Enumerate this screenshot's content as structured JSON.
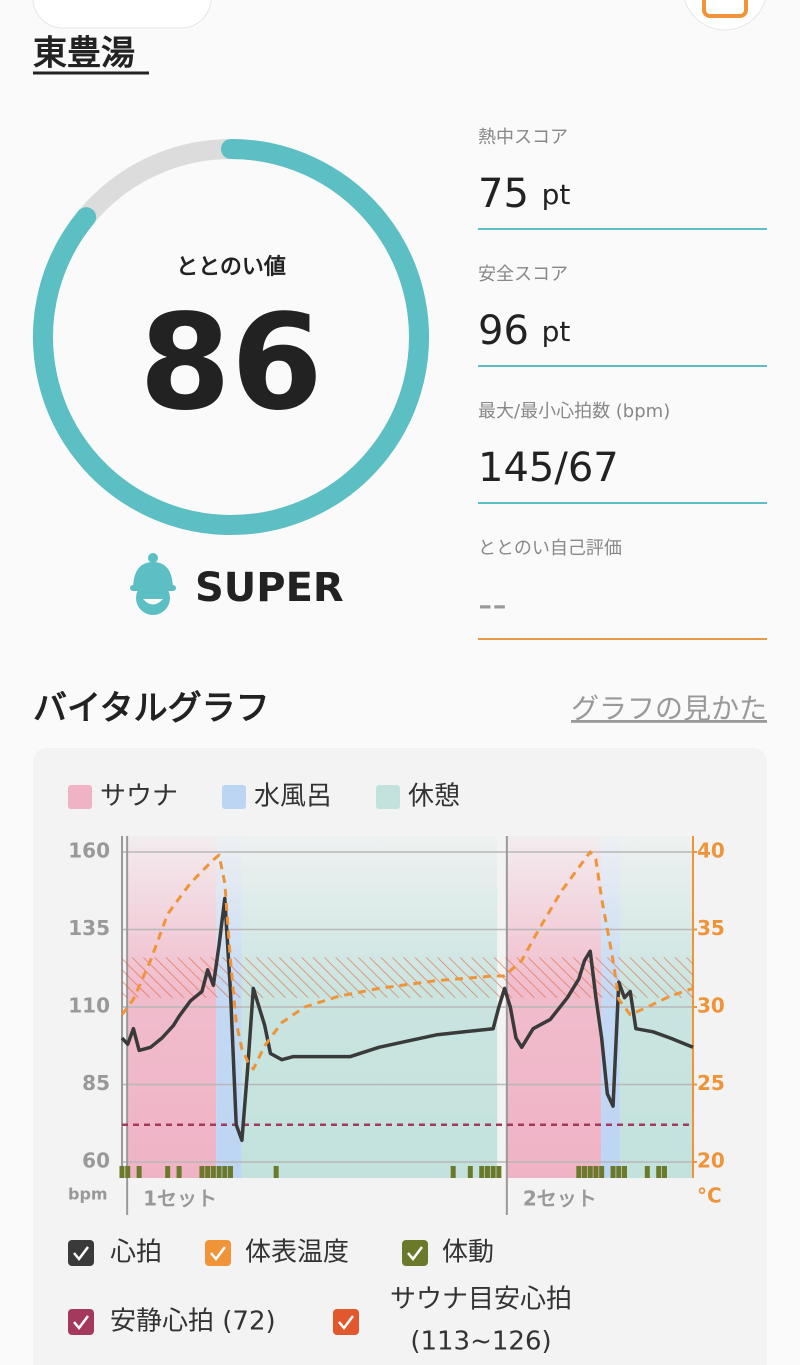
{
  "header": {
    "place": "東豊湯"
  },
  "score": {
    "label": "ととのい値",
    "value": 86,
    "range": [
      0,
      100
    ],
    "rank": "SUPER",
    "color": "#5bbfc4"
  },
  "stats": [
    {
      "label": "熱中スコア",
      "value": 75,
      "unit": "pt"
    },
    {
      "label": "安全スコア",
      "value": 96,
      "unit": "pt"
    },
    {
      "label": "最大/最小心拍数 (bpm)",
      "value": "145/67"
    },
    {
      "label": "ととのい自己評価",
      "value": "--"
    }
  ],
  "vitals": {
    "title": "バイタルグラフ",
    "help_link": "グラフの見かた"
  },
  "chart_data": {
    "type": "line",
    "phase_legend": [
      {
        "name": "サウナ",
        "color": "#f0b3c6"
      },
      {
        "name": "水風呂",
        "color": "#bcd5f3"
      },
      {
        "name": "休憩",
        "color": "#c3e2dd"
      }
    ],
    "phases": [
      {
        "phase": 0,
        "range": [
          1,
          16.5
        ]
      },
      {
        "phase": 1,
        "range": [
          16.5,
          21
        ]
      },
      {
        "phase": 2,
        "range": [
          21,
          65.7
        ]
      },
      {
        "phase": 0,
        "range": [
          67.4,
          83.9
        ]
      },
      {
        "phase": 1,
        "range": [
          83.9,
          87.2
        ]
      },
      {
        "phase": 2,
        "range": [
          87.2,
          100
        ]
      }
    ],
    "sets": [
      {
        "label": "1セット",
        "x": 0.9
      },
      {
        "label": "2セット",
        "x": 67.4
      }
    ],
    "xlim": [
      0,
      100
    ],
    "ylim": [
      60,
      160
    ],
    "yticks": [
      60,
      85,
      110,
      135,
      160
    ],
    "y_unit": "bpm",
    "y2lim": [
      20,
      40
    ],
    "y2ticks": [
      20,
      25,
      30,
      35,
      40
    ],
    "y2_unit": "°C",
    "series": [
      {
        "name": "心拍",
        "color": "#3a3a3a",
        "x": [
          0,
          1,
          2,
          3,
          5,
          7,
          9,
          10,
          12,
          14,
          15,
          16,
          17,
          18,
          19,
          20,
          21,
          22,
          23,
          24,
          25,
          26,
          28,
          30,
          35,
          40,
          45,
          50,
          55,
          60,
          65,
          66,
          67,
          68,
          69,
          70,
          72,
          75,
          78,
          80,
          81,
          82,
          83,
          84,
          85,
          86,
          87,
          88,
          89,
          90,
          93,
          96,
          100
        ],
        "values": [
          100,
          98,
          103,
          96,
          97,
          100,
          104,
          107,
          112,
          115,
          122,
          117,
          130,
          145,
          115,
          72,
          67,
          90,
          116,
          110,
          104,
          95,
          93,
          94,
          94,
          94,
          97,
          99,
          101,
          102,
          103,
          110,
          116,
          110,
          100,
          97,
          103,
          106,
          113,
          119,
          125,
          128,
          113,
          100,
          82,
          78,
          118,
          113,
          115,
          103,
          102,
          100,
          97
        ]
      },
      {
        "name": "体表温度",
        "color": "#f0943a",
        "axis": "y2",
        "x": [
          0,
          2,
          5,
          8,
          12,
          16,
          17,
          18,
          19,
          20,
          21,
          22,
          23,
          25,
          28,
          32,
          38,
          45,
          55,
          65,
          67,
          70,
          73,
          77,
          81,
          82,
          83,
          84,
          86,
          87,
          89,
          92,
          96,
          100
        ],
        "values": [
          29.5,
          30.5,
          33,
          36,
          38,
          39.5,
          39.8,
          38,
          33,
          29,
          27.3,
          26.5,
          26,
          27.5,
          29,
          30,
          30.7,
          31.2,
          31.7,
          32,
          32,
          33,
          35,
          37.5,
          39.5,
          40,
          39.5,
          37,
          33,
          30.5,
          29.5,
          30,
          30.7,
          31.2
        ]
      },
      {
        "name": "体動",
        "color": "#6b7a2a",
        "x": [
          0,
          1,
          3,
          8,
          10,
          14,
          15,
          16,
          17,
          18,
          19,
          27,
          58,
          61,
          63,
          64,
          65,
          66,
          80,
          81,
          82,
          83,
          84,
          86,
          87,
          88,
          92,
          94,
          95
        ]
      }
    ],
    "resting_hr": {
      "name": "安静心拍 (72)",
      "value": 72,
      "color": "#a33a5e"
    },
    "target_hr": {
      "name": "サウナ目安心拍",
      "range_label": "(113~126)",
      "values": [
        113,
        126
      ],
      "color": "#e0582c"
    }
  }
}
